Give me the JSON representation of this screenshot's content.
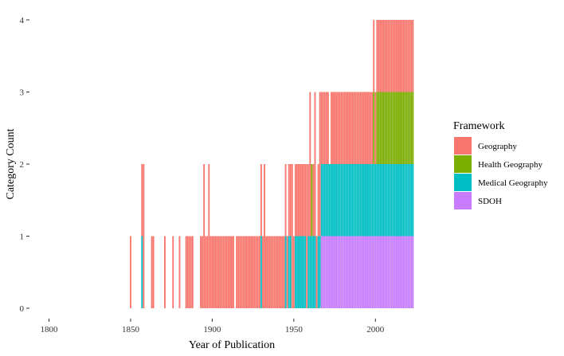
{
  "chart_data": {
    "type": "bar",
    "stacked": true,
    "title": "",
    "xlabel": "Year of Publication",
    "ylabel": "Category Count",
    "xlim": [
      1790,
      2035
    ],
    "ylim": [
      0,
      4
    ],
    "xticks": [
      1800,
      1850,
      1900,
      1950,
      2000
    ],
    "yticks": [
      0,
      1,
      2,
      3,
      4
    ],
    "grid": false,
    "legend": {
      "title": "Framework",
      "position": "right",
      "entries": [
        {
          "name": "Geography",
          "color": "#f8766d"
        },
        {
          "name": "Health Geography",
          "color": "#7cae00"
        },
        {
          "name": "Medical Geography",
          "color": "#00bfc4"
        },
        {
          "name": "SDOH",
          "color": "#c77cff"
        }
      ]
    },
    "series_order_bottom_to_top": [
      "SDOH",
      "Medical Geography",
      "Health Geography",
      "Geography"
    ],
    "ranges": [
      {
        "from": 1850,
        "to": 1850,
        "counts": {
          "Geography": 1
        }
      },
      {
        "from": 1857,
        "to": 1857,
        "counts": {
          "Geography": 1,
          "Medical Geography": 1
        }
      },
      {
        "from": 1858,
        "to": 1858,
        "counts": {
          "Geography": 2
        }
      },
      {
        "from": 1863,
        "to": 1864,
        "counts": {
          "Geography": 1
        }
      },
      {
        "from": 1871,
        "to": 1871,
        "counts": {
          "Geography": 1
        }
      },
      {
        "from": 1876,
        "to": 1876,
        "counts": {
          "Geography": 1
        }
      },
      {
        "from": 1880,
        "to": 1880,
        "counts": {
          "Geography": 1
        }
      },
      {
        "from": 1884,
        "to": 1888,
        "counts": {
          "Geography": 1
        }
      },
      {
        "from": 1893,
        "to": 1894,
        "counts": {
          "Geography": 1
        }
      },
      {
        "from": 1895,
        "to": 1895,
        "counts": {
          "Geography": 2
        }
      },
      {
        "from": 1896,
        "to": 1897,
        "counts": {
          "Geography": 1
        }
      },
      {
        "from": 1898,
        "to": 1898,
        "counts": {
          "Geography": 2
        }
      },
      {
        "from": 1899,
        "to": 1913,
        "counts": {
          "Geography": 1
        }
      },
      {
        "from": 1915,
        "to": 1929,
        "counts": {
          "Geography": 1
        }
      },
      {
        "from": 1930,
        "to": 1930,
        "counts": {
          "Geography": 1,
          "Medical Geography": 1
        }
      },
      {
        "from": 1931,
        "to": 1931,
        "counts": {
          "Geography": 1
        }
      },
      {
        "from": 1932,
        "to": 1932,
        "counts": {
          "Geography": 2
        }
      },
      {
        "from": 1933,
        "to": 1944,
        "counts": {
          "Geography": 1
        }
      },
      {
        "from": 1945,
        "to": 1945,
        "counts": {
          "Medical Geography": 1,
          "Geography": 1
        }
      },
      {
        "from": 1946,
        "to": 1946,
        "counts": {
          "Geography": 1
        }
      },
      {
        "from": 1947,
        "to": 1948,
        "counts": {
          "Medical Geography": 1,
          "Geography": 1
        }
      },
      {
        "from": 1949,
        "to": 1949,
        "counts": {
          "Geography": 2
        }
      },
      {
        "from": 1950,
        "to": 1950,
        "counts": {
          "Geography": 1
        }
      },
      {
        "from": 1951,
        "to": 1957,
        "counts": {
          "Medical Geography": 1,
          "Geography": 1
        }
      },
      {
        "from": 1958,
        "to": 1958,
        "counts": {
          "Geography": 2
        }
      },
      {
        "from": 1959,
        "to": 1959,
        "counts": {
          "Medical Geography": 1,
          "Geography": 1
        }
      },
      {
        "from": 1960,
        "to": 1960,
        "counts": {
          "Medical Geography": 1,
          "Geography": 2
        }
      },
      {
        "from": 1961,
        "to": 1961,
        "counts": {
          "Medical Geography": 1,
          "Health Geography": 1
        }
      },
      {
        "from": 1962,
        "to": 1962,
        "counts": {
          "Medical Geography": 1,
          "Geography": 1
        }
      },
      {
        "from": 1963,
        "to": 1963,
        "counts": {
          "Medical Geography": 1,
          "Geography": 2
        }
      },
      {
        "from": 1964,
        "to": 1964,
        "counts": {
          "Geography": 1
        }
      },
      {
        "from": 1965,
        "to": 1965,
        "counts": {
          "Medical Geography": 1,
          "Geography": 1
        }
      },
      {
        "from": 1966,
        "to": 1966,
        "counts": {
          "Medical Geography": 1,
          "Geography": 2
        }
      },
      {
        "from": 1967,
        "to": 1971,
        "counts": {
          "SDOH": 1,
          "Medical Geography": 1,
          "Geography": 1
        }
      },
      {
        "from": 1972,
        "to": 1972,
        "counts": {
          "SDOH": 1,
          "Medical Geography": 1
        }
      },
      {
        "from": 1973,
        "to": 1998,
        "counts": {
          "SDOH": 1,
          "Medical Geography": 1,
          "Geography": 1
        }
      },
      {
        "from": 1999,
        "to": 1999,
        "counts": {
          "SDOH": 1,
          "Medical Geography": 1,
          "Health Geography": 1,
          "Geography": 1
        }
      },
      {
        "from": 2000,
        "to": 2000,
        "counts": {
          "SDOH": 1,
          "Medical Geography": 1,
          "Geography": 1
        }
      },
      {
        "from": 2001,
        "to": 2023,
        "counts": {
          "SDOH": 1,
          "Medical Geography": 1,
          "Health Geography": 1,
          "Geography": 1
        }
      }
    ]
  }
}
